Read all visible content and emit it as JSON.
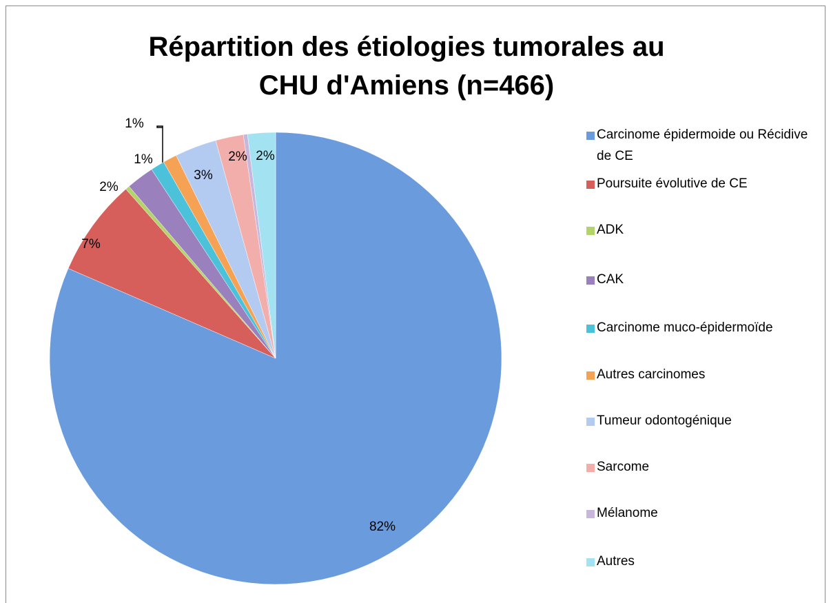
{
  "chart_data": {
    "type": "pie",
    "title": "Répartition des étiologies tumorales au CHU d'Amiens (n=466)",
    "categories": [
      "Carcinome épidermoide ou Récidive de CE",
      "Poursuite évolutive de CE",
      "ADK",
      "CAK",
      "Carcinome muco-épidermoïde",
      "Autres carcinomes",
      "Tumeur odontogénique",
      "Sarcome",
      "Mélanome",
      "Autres"
    ],
    "values": [
      82,
      7,
      0.3,
      2,
      1,
      1,
      3,
      2,
      0.3,
      2
    ],
    "value_labels": [
      "82%",
      "7%",
      null,
      "2%",
      "1%",
      "1%",
      "3%",
      "2%",
      null,
      "2%"
    ],
    "colors": [
      "#6a9bdc",
      "#d65f5b",
      "#b3d46a",
      "#9a80bd",
      "#4bc1da",
      "#f5a254",
      "#b3cbf1",
      "#f2aeab",
      "#c7b7dc",
      "#a3e2f0"
    ],
    "legend": "right"
  }
}
